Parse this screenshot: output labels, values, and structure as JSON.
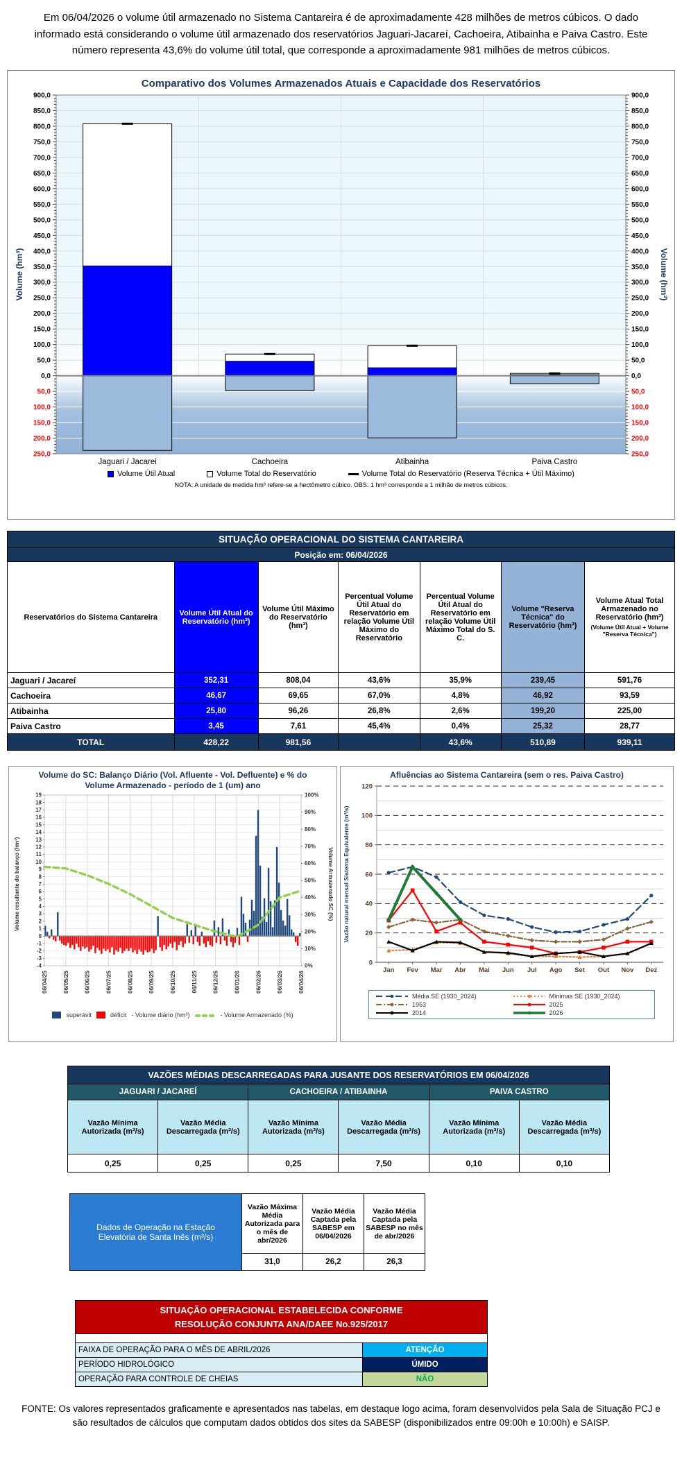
{
  "page": {
    "intro": "Em 06/04/2026 o volume útil armazenado no Sistema Cantareira é de aproximadamente 428 milhões de metros cúbicos. O dado informado está considerando o volume útil armazenado dos reservatórios Jaguari-Jacareí, Cachoeira, Atibainha e Paiva Castro. Este número representa 43,6% do volume útil total, que corresponde a aproximadamente 981 milhões de metros cúbicos.",
    "fonte": "FONTE: Os valores representados graficamente e apresentados nas tabelas, em destaque logo acima, foram desenvolvidos pela Sala de Situação PCJ e são resultados de cálculos que computam dados obtidos dos sites da SABESP (disponibilizados entre 09:00h e 10:00h) e SAISP."
  },
  "chart_data": [
    {
      "type": "bar",
      "title": "Comparativo dos Volumes Armazenados Atuais e Capacidade dos Reservatórios",
      "ylabel_left": "Volume (hm³)",
      "ylabel_right": "Volume (hm³)",
      "ylim": [
        -250,
        900
      ],
      "tick_step": 50,
      "grid": true,
      "categories": [
        "Jaguari / Jacarei",
        "Cachoeira",
        "Atibainha",
        "Paiva Castro"
      ],
      "series": [
        {
          "name": "Volume Útil Atual",
          "color": "#0000FF",
          "values": [
            352.31,
            46.67,
            25.8,
            3.45
          ]
        },
        {
          "name": "Volume Total do Reservatório",
          "color": "#FFFFFF",
          "values": [
            808.04,
            69.65,
            96.26,
            7.61
          ]
        }
      ],
      "reserva_tecnica": [
        239.45,
        46.92,
        199.2,
        25.32
      ],
      "legend": [
        "Volume Útil Atual",
        "Volume Total do Reservatório",
        "Volume Total do Reservatório (Reserva Técnica + Útil Máximo)"
      ],
      "note": "NOTA: A unidade de medida hm³ refere-se a hectômetro cúbico. OBS: 1 hm³ corresponde a 1 milhão de metros cúbicos."
    },
    {
      "type": "bar+line",
      "title": "Volume do SC: Balanço Diário (Vol. Afluente - Vol. Defluente) e % do Volume Armazenado - período de 1 (um) ano",
      "ylabel_left": "Volume resultante do balanço (hm³)",
      "ylabel_right": "Volume Armazenado SC (%)",
      "ylim_left": [
        -4,
        19
      ],
      "ylim_right": [
        0,
        100
      ],
      "x_labels": [
        "06/04/25",
        "06/05/25",
        "06/06/25",
        "06/07/25",
        "06/08/25",
        "06/09/25",
        "06/10/25",
        "06/11/25",
        "06/12/25",
        "06/01/26",
        "06/02/26",
        "06/03/26",
        "06/04/26"
      ],
      "balance_daily": [
        1.4,
        0.6,
        -0.3,
        0.9,
        -0.5,
        -0.7,
        3.2,
        -0.6,
        -1.0,
        -1.2,
        -1.3,
        -0.9,
        -1.6,
        -1.2,
        -1.8,
        -1.0,
        -1.5,
        -2.0,
        -1.4,
        -1.7,
        -1.5,
        -2.1,
        -1.8,
        -1.3,
        -2.3,
        -1.6,
        -1.9,
        -2.4,
        -1.7,
        -2.0,
        -1.8,
        -2.2,
        -1.5,
        -2.5,
        -1.9,
        -2.1,
        -1.6,
        -2.3,
        -2.0,
        -1.7,
        -2.0,
        -1.6,
        -2.2,
        -1.9,
        -2.4,
        -1.8,
        -2.1,
        -2.5,
        -1.9,
        -2.2,
        -2.1,
        -1.7,
        -2.3,
        -1.9,
        2.7,
        -1.5,
        -2.0,
        -1.2,
        -1.8,
        -1.4,
        -1.0,
        -1.6,
        -0.8,
        -1.9,
        -1.2,
        -0.7,
        -1.5,
        -1.0,
        1.6,
        -0.9,
        0.8,
        -1.1,
        1.4,
        -0.8,
        -1.3,
        0.6,
        -1.0,
        -1.5,
        -0.7,
        -1.2,
        -1.4,
        2.1,
        -0.9,
        1.2,
        -1.1,
        2.4,
        -0.6,
        -1.3,
        0.9,
        -0.8,
        -1.5,
        -0.9,
        1.1,
        -1.2,
        5.3,
        3.0,
        1.8,
        -0.8,
        2.2,
        4.9,
        3.4,
        13.5,
        17.0,
        9.5,
        2.6,
        5.1,
        1.9,
        9.2,
        4.7,
        1.2,
        4.8,
        12.0,
        7.2,
        3.5,
        2.1,
        1.4,
        5.0,
        2.8,
        0.9,
        0.5,
        -0.8,
        -1.3,
        0.4
      ],
      "pct_line": [
        58,
        57,
        53,
        48,
        42,
        35,
        28,
        24,
        20,
        17,
        24,
        40,
        44
      ],
      "legend": [
        "superávit",
        "déficit",
        "-  Volume diário (hm³)",
        "-  Volume Armazenado (%)"
      ],
      "colors": {
        "superavit": "#1F497D",
        "deficit": "#FF0000",
        "pct": "#92D050"
      }
    },
    {
      "type": "line",
      "title": "Afluências ao Sistema Cantareira (sem o res. Paiva Castro)",
      "ylabel": "Vazão natural  mensal Sistema Equivalente  (m³/s)",
      "ylim": [
        0,
        120
      ],
      "grid": "dashed-major-20-minor-10",
      "legend_position": "bottom",
      "categories": [
        "Jan",
        "Fev",
        "Mar",
        "Abr",
        "Mai",
        "Jun",
        "Jul",
        "Ago",
        "Set",
        "Out",
        "Nov",
        "Dez"
      ],
      "series": [
        {
          "name": "Média SE (1930_2024)",
          "color": "#1F497D",
          "style": "dashed",
          "marker": "circle",
          "values": [
            61,
            65,
            58,
            41,
            32,
            29.5,
            24,
            20.5,
            21,
            25.5,
            29.5,
            45.5
          ]
        },
        {
          "name": "Mínimas SE (1930_2024)",
          "color": "#ED7D31",
          "style": "dotted",
          "marker": "triangle",
          "values": [
            8,
            8.5,
            13.5,
            13,
            7,
            6,
            4,
            4,
            3.5,
            4,
            6,
            13
          ]
        },
        {
          "name": "1953",
          "color": "#8C6239",
          "style": "dashdot",
          "marker": "diamond",
          "values": [
            24,
            29,
            27,
            29,
            21,
            18,
            15,
            14,
            14,
            15.5,
            23,
            27.5
          ]
        },
        {
          "name": "2025",
          "color": "#FF0000",
          "style": "solid",
          "marker": "square",
          "values": [
            28.5,
            49,
            21,
            27,
            14,
            12,
            10,
            6,
            7,
            10,
            14,
            14
          ]
        },
        {
          "name": "2014",
          "color": "#000000",
          "style": "solid",
          "marker": "triangle",
          "values": [
            14,
            8,
            14,
            13.5,
            7,
            6.5,
            4,
            6,
            7,
            4,
            6,
            13
          ]
        },
        {
          "name": "2026",
          "color": "#1E7B34",
          "style": "solid-thick",
          "marker": "circle",
          "values": [
            29,
            65,
            47,
            29
          ]
        }
      ]
    }
  ],
  "main_table": {
    "title": "SITUAÇÃO OPERACIONAL DO SISTEMA CANTAREIRA",
    "subtitle": "Posição em: 06/04/2026",
    "col_headers": [
      "Reservatórios do Sistema Cantareira",
      "Volume Útil Atual do Reservatório (hm³)",
      "Volume Útil Máximo do Reservatório (hm³)",
      "Percentual Volume Útil Atual do Reservatório em relação Volume Útil Máximo do Reservatório",
      "Percentual Volume Útil Atual do Reservatório em relação Volume Útil Máximo Total do S. C.",
      "Volume \"Reserva Técnica\" do Reservatório (hm³)",
      "Volume Atual Total Armazenado no Reservatório (hm³)"
    ],
    "col7_note": "(Volume Útil Atual + Volume \"Reserva Técnica\")",
    "rows": [
      {
        "name": "Jaguari / Jacareí",
        "util_atual": "352,31",
        "util_max": "808,04",
        "pct_res": "43,6%",
        "pct_sc": "35,9%",
        "reserva": "239,45",
        "total": "591,76"
      },
      {
        "name": "Cachoeira",
        "util_atual": "46,67",
        "util_max": "69,65",
        "pct_res": "67,0%",
        "pct_sc": "4,8%",
        "reserva": "46,92",
        "total": "93,59"
      },
      {
        "name": "Atibainha",
        "util_atual": "25,80",
        "util_max": "96,26",
        "pct_res": "26,8%",
        "pct_sc": "2,6%",
        "reserva": "199,20",
        "total": "225,00"
      },
      {
        "name": "Paiva Castro",
        "util_atual": "3,45",
        "util_max": "7,61",
        "pct_res": "45,4%",
        "pct_sc": "0,4%",
        "reserva": "25,32",
        "total": "28,77"
      }
    ],
    "total_row": {
      "name": "TOTAL",
      "util_atual": "428,22",
      "util_max": "981,56",
      "pct_res": "",
      "pct_sc": "43,6%",
      "reserva": "510,89",
      "total": "939,11"
    }
  },
  "vazoes_table": {
    "title": "VAZÕES MÉDIAS DESCARREGADAS PARA JUSANTE DOS RESERVATÓRIOS EM 06/04/2026",
    "groups": [
      "JAGUARI / JACAREÍ",
      "CACHOEIRA / ATIBAINHA",
      "PAIVA CASTRO"
    ],
    "sub_headers": [
      "Vazão Mínima Autorizada (m³/s)",
      "Vazão Média Descarregada (m³/s)",
      "Vazão Mínima Autorizada (m³/s)",
      "Vazão Média Descarregada (m³/s)",
      "Vazão Mínima Autorizada (m³/s)",
      "Vazão Média Descarregada (m³/s)"
    ],
    "values": [
      "0,25",
      "0,25",
      "0,25",
      "7,50",
      "0,10",
      "0,10"
    ]
  },
  "santa_ines_table": {
    "label": "Dados de Operação na Estação Elevatória de Santa Inês (m³/s)",
    "col_headers": [
      "Vazão Máxima Média Autorizada para o mês de abr/2026",
      "Vazão Média Captada pela SABESP em 06/04/2026",
      "Vazão Média Captada pela SABESP no mês de abr/2026"
    ],
    "values": [
      "31,0",
      "26,2",
      "26,3"
    ]
  },
  "resolucao_table": {
    "title_line1": "SITUAÇÃO OPERACIONAL ESTABELECIDA CONFORME",
    "title_line2": "RESOLUÇÃO CONJUNTA ANA/DAEE No.925/2017",
    "rows": [
      {
        "label": "FAIXA DE OPERAÇÃO PARA O MÊS DE ABRIL/2026",
        "value": "ATENÇÃO",
        "value_bg": "#00B0F0",
        "value_color": "#FFFFFF"
      },
      {
        "label": "PERÍODO HIDROLÓGICO",
        "value": "ÚMIDO",
        "value_bg": "#002060",
        "value_color": "#FFFFFF"
      },
      {
        "label": "OPERAÇÃO PARA CONTROLE DE CHEIAS",
        "value": "NÃO",
        "value_bg": "#C4D79B",
        "value_color": "#00B050"
      }
    ]
  }
}
